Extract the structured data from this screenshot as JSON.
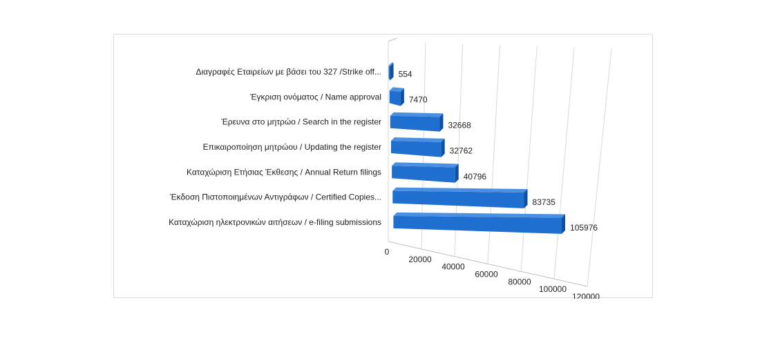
{
  "chart_data": {
    "type": "bar",
    "orientation": "horizontal",
    "style": "3d",
    "categories": [
      "Διαγραφές Εταιρείων  με  βάσει του 327 /Strike off...",
      "Έγκριση ονόματος / Name approval",
      "Έρευνα στο μητρώο / Search in the register",
      "Επικαιροποίηση μητρώου / Updating the register",
      "Καταχώριση Ετήσιας Έκθεσης / Annual Return filings",
      "Έκδοση Πιστοποιημένων Αντιγράφων / Certified Copies...",
      "Καταχώριση ηλεκτρονικών αιτήσεων / e-filing submissions"
    ],
    "values": [
      554,
      7470,
      32668,
      32762,
      40796,
      83735,
      105976
    ],
    "value_labels": [
      "554",
      "7470",
      "32668",
      "32762",
      "40796",
      "83735",
      "105976"
    ],
    "xlim": [
      0,
      120000
    ],
    "x_ticks": [
      "0",
      "20000",
      "40000",
      "60000",
      "80000",
      "100000",
      "120000"
    ],
    "grid": true,
    "legend": "none",
    "colors": {
      "bar_front": "#1f6fd1",
      "bar_top": "#4a90e2",
      "bar_side": "#0f4fa0",
      "grid": "#d9d9d9"
    }
  }
}
